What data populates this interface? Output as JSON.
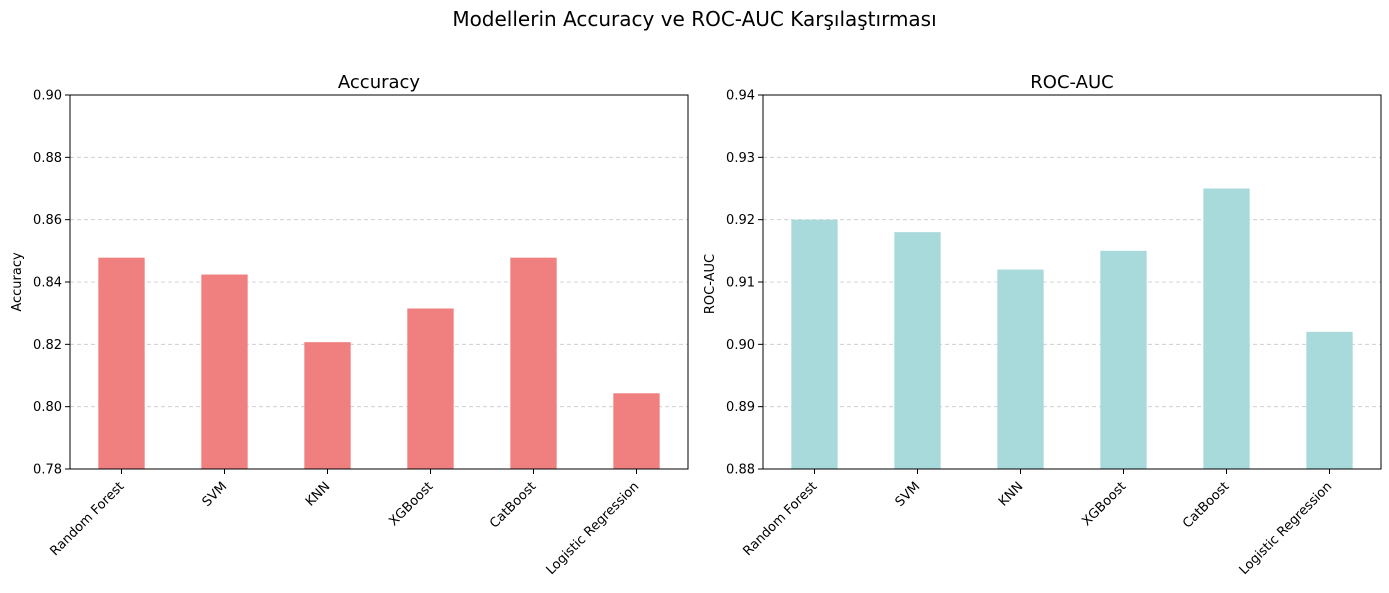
{
  "figure_title": "Modellerin Accuracy ve ROC-AUC Karşılaştırması",
  "chart_data": [
    {
      "type": "bar",
      "title": "Accuracy",
      "xlabel": "",
      "ylabel": "Accuracy",
      "categories": [
        "Random Forest",
        "SVM",
        "KNN",
        "XGBoost",
        "CatBoost",
        "Logistic Regression"
      ],
      "values": [
        0.8478,
        0.8424,
        0.8207,
        0.8315,
        0.8478,
        0.8043
      ],
      "ylim": [
        0.78,
        0.9
      ],
      "yticks": [
        "0.78",
        "0.80",
        "0.82",
        "0.84",
        "0.86",
        "0.88",
        "0.90"
      ],
      "color": "#f08080",
      "grid": "y-dashed"
    },
    {
      "type": "bar",
      "title": "ROC-AUC",
      "xlabel": "",
      "ylabel": "ROC-AUC",
      "categories": [
        "Random Forest",
        "SVM",
        "KNN",
        "XGBoost",
        "CatBoost",
        "Logistic Regression"
      ],
      "values": [
        0.92,
        0.918,
        0.912,
        0.915,
        0.925,
        0.902
      ],
      "ylim": [
        0.88,
        0.94
      ],
      "yticks": [
        "0.88",
        "0.89",
        "0.90",
        "0.91",
        "0.92",
        "0.93",
        "0.94"
      ],
      "color": "#a8dadc",
      "grid": "y-dashed"
    }
  ]
}
